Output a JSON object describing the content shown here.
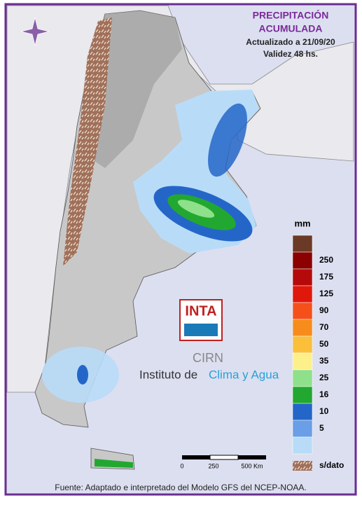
{
  "header": {
    "title_line1": "PRECIPITACIÓN",
    "title_line2": "ACUMULADA",
    "updated": "Actualizado a 21/09/20",
    "validity": "Validez 48 hs."
  },
  "legend": {
    "unit": "mm",
    "colors": [
      "#6b3a26",
      "#8b0000",
      "#b50a0a",
      "#e0180c",
      "#f5501a",
      "#f78c1c",
      "#fbbf3a",
      "#fdf08a",
      "#8fe08a",
      "#22a830",
      "#2466c8",
      "#6a9ee6",
      "#b8dcf8"
    ],
    "labels": [
      "250",
      "175",
      "125",
      "90",
      "70",
      "50",
      "35",
      "25",
      "16",
      "10",
      "5"
    ],
    "no_data": "s/dato"
  },
  "scale_bar": {
    "labels": [
      "0",
      "250",
      "500 Km"
    ]
  },
  "logo": {
    "inta": "INTA",
    "cirn": "CIRN",
    "institute": "Instituto de",
    "institute_highlight": "Clima y Agua"
  },
  "footer": {
    "source": "Fuente: Adaptado e interpretado del Modelo GFS del NCEP-NOAA."
  }
}
